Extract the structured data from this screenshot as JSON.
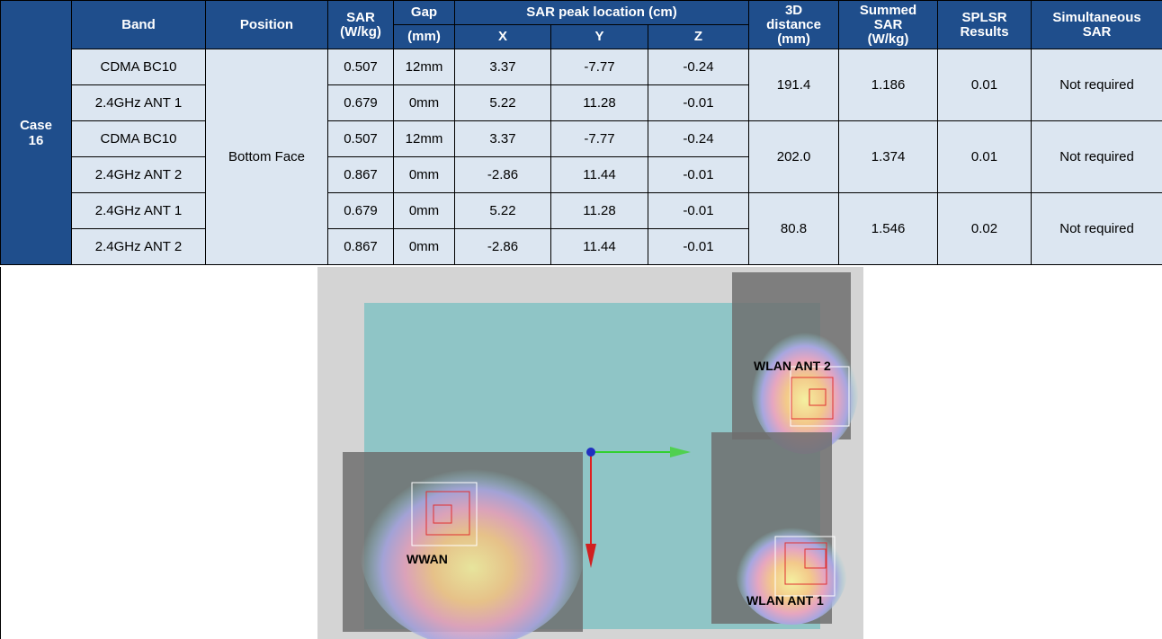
{
  "table": {
    "header": {
      "band": "Band",
      "position": "Position",
      "sar": [
        "SAR",
        "(W/kg)"
      ],
      "gap": "Gap",
      "gap_unit": "(mm)",
      "peak": "SAR peak location (cm)",
      "x": "X",
      "y": "Y",
      "z": "Z",
      "distance": [
        "3D",
        "distance",
        "(mm)"
      ],
      "summed": [
        "Summed",
        "SAR",
        "(W/kg)"
      ],
      "splsr": [
        "SPLSR",
        "Results"
      ],
      "simultaneous": [
        "Simultaneous",
        "SAR"
      ]
    },
    "case": [
      "Case",
      "16"
    ],
    "position": "Bottom Face",
    "rows": [
      [
        "CDMA BC10",
        "0.507",
        "12mm",
        "3.37",
        "-7.77",
        "-0.24"
      ],
      [
        "2.4GHz ANT 1",
        "0.679",
        "0mm",
        "5.22",
        "11.28",
        "-0.01"
      ],
      [
        "CDMA BC10",
        "0.507",
        "12mm",
        "3.37",
        "-7.77",
        "-0.24"
      ],
      [
        "2.4GHz ANT 2",
        "0.867",
        "0mm",
        "-2.86",
        "11.44",
        "-0.01"
      ],
      [
        "2.4GHz ANT 1",
        "0.679",
        "0mm",
        "5.22",
        "11.28",
        "-0.01"
      ],
      [
        "2.4GHz ANT 2",
        "0.867",
        "0mm",
        "-2.86",
        "11.44",
        "-0.01"
      ]
    ],
    "groups": [
      [
        "191.4",
        "1.186",
        "0.01",
        "Not required"
      ],
      [
        "202.0",
        "1.374",
        "0.01",
        "Not required"
      ],
      [
        "80.8",
        "1.546",
        "0.02",
        "Not required"
      ]
    ]
  },
  "figure": {
    "labels": [
      "WWAN",
      "WLAN ANT 2",
      "WLAN ANT 1"
    ]
  }
}
